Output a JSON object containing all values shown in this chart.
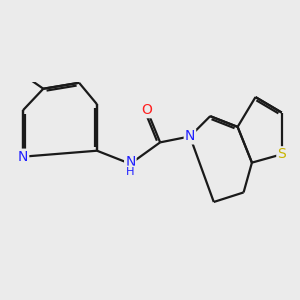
{
  "background_color": "#ebebeb",
  "bond_color": "#1a1a1a",
  "atom_colors": {
    "N": "#2020ff",
    "O": "#ff2020",
    "S": "#c8b400",
    "C": "#1a1a1a"
  },
  "bond_width": 1.6,
  "font_size": 10,
  "figsize": [
    3.0,
    3.0
  ],
  "dpi": 100
}
